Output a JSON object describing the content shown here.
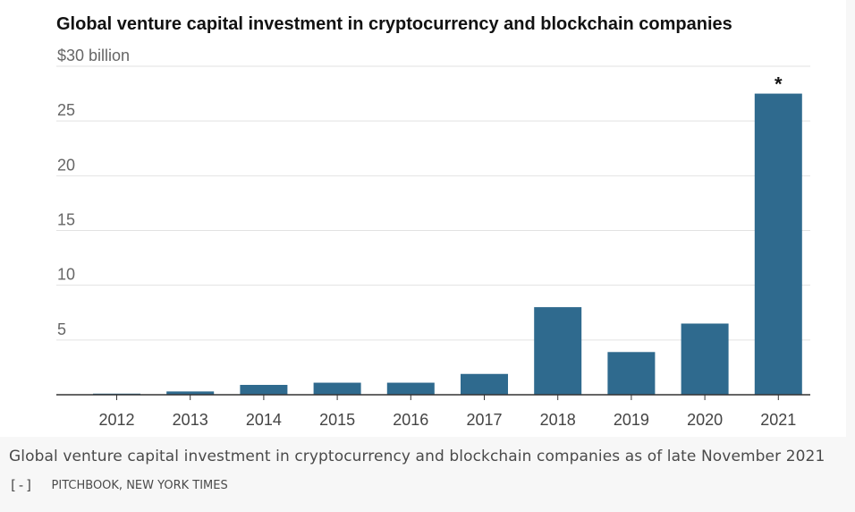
{
  "chart_data": {
    "type": "bar",
    "title": "Global venture capital investment in cryptocurrency and blockchain companies",
    "xlabel": "",
    "ylabel": "",
    "y_unit_top_label": "$30 billion",
    "categories": [
      "2012",
      "2013",
      "2014",
      "2015",
      "2016",
      "2017",
      "2018",
      "2019",
      "2020",
      "2021"
    ],
    "values": [
      0.1,
      0.3,
      0.9,
      1.1,
      1.1,
      1.9,
      8.0,
      3.9,
      6.5,
      27.5
    ],
    "ylim": [
      0,
      30
    ],
    "yticks": [
      0,
      5,
      10,
      15,
      20,
      25,
      30
    ],
    "ytick_labels": [
      "",
      "5",
      "10",
      "15",
      "20",
      "25",
      "$30 billion"
    ],
    "annotation": {
      "category": "2021",
      "text": "*"
    },
    "grid": true,
    "bar_color": "#2f6a8e",
    "grid_color": "#e2e2e2",
    "axis_color": "#333333"
  },
  "caption": {
    "text": "Global venture capital investment in cryptocurrency and blockchain companies as of late November 2021",
    "toggle_label": "[-]",
    "source": "PITCHBOOK, NEW YORK TIMES"
  }
}
